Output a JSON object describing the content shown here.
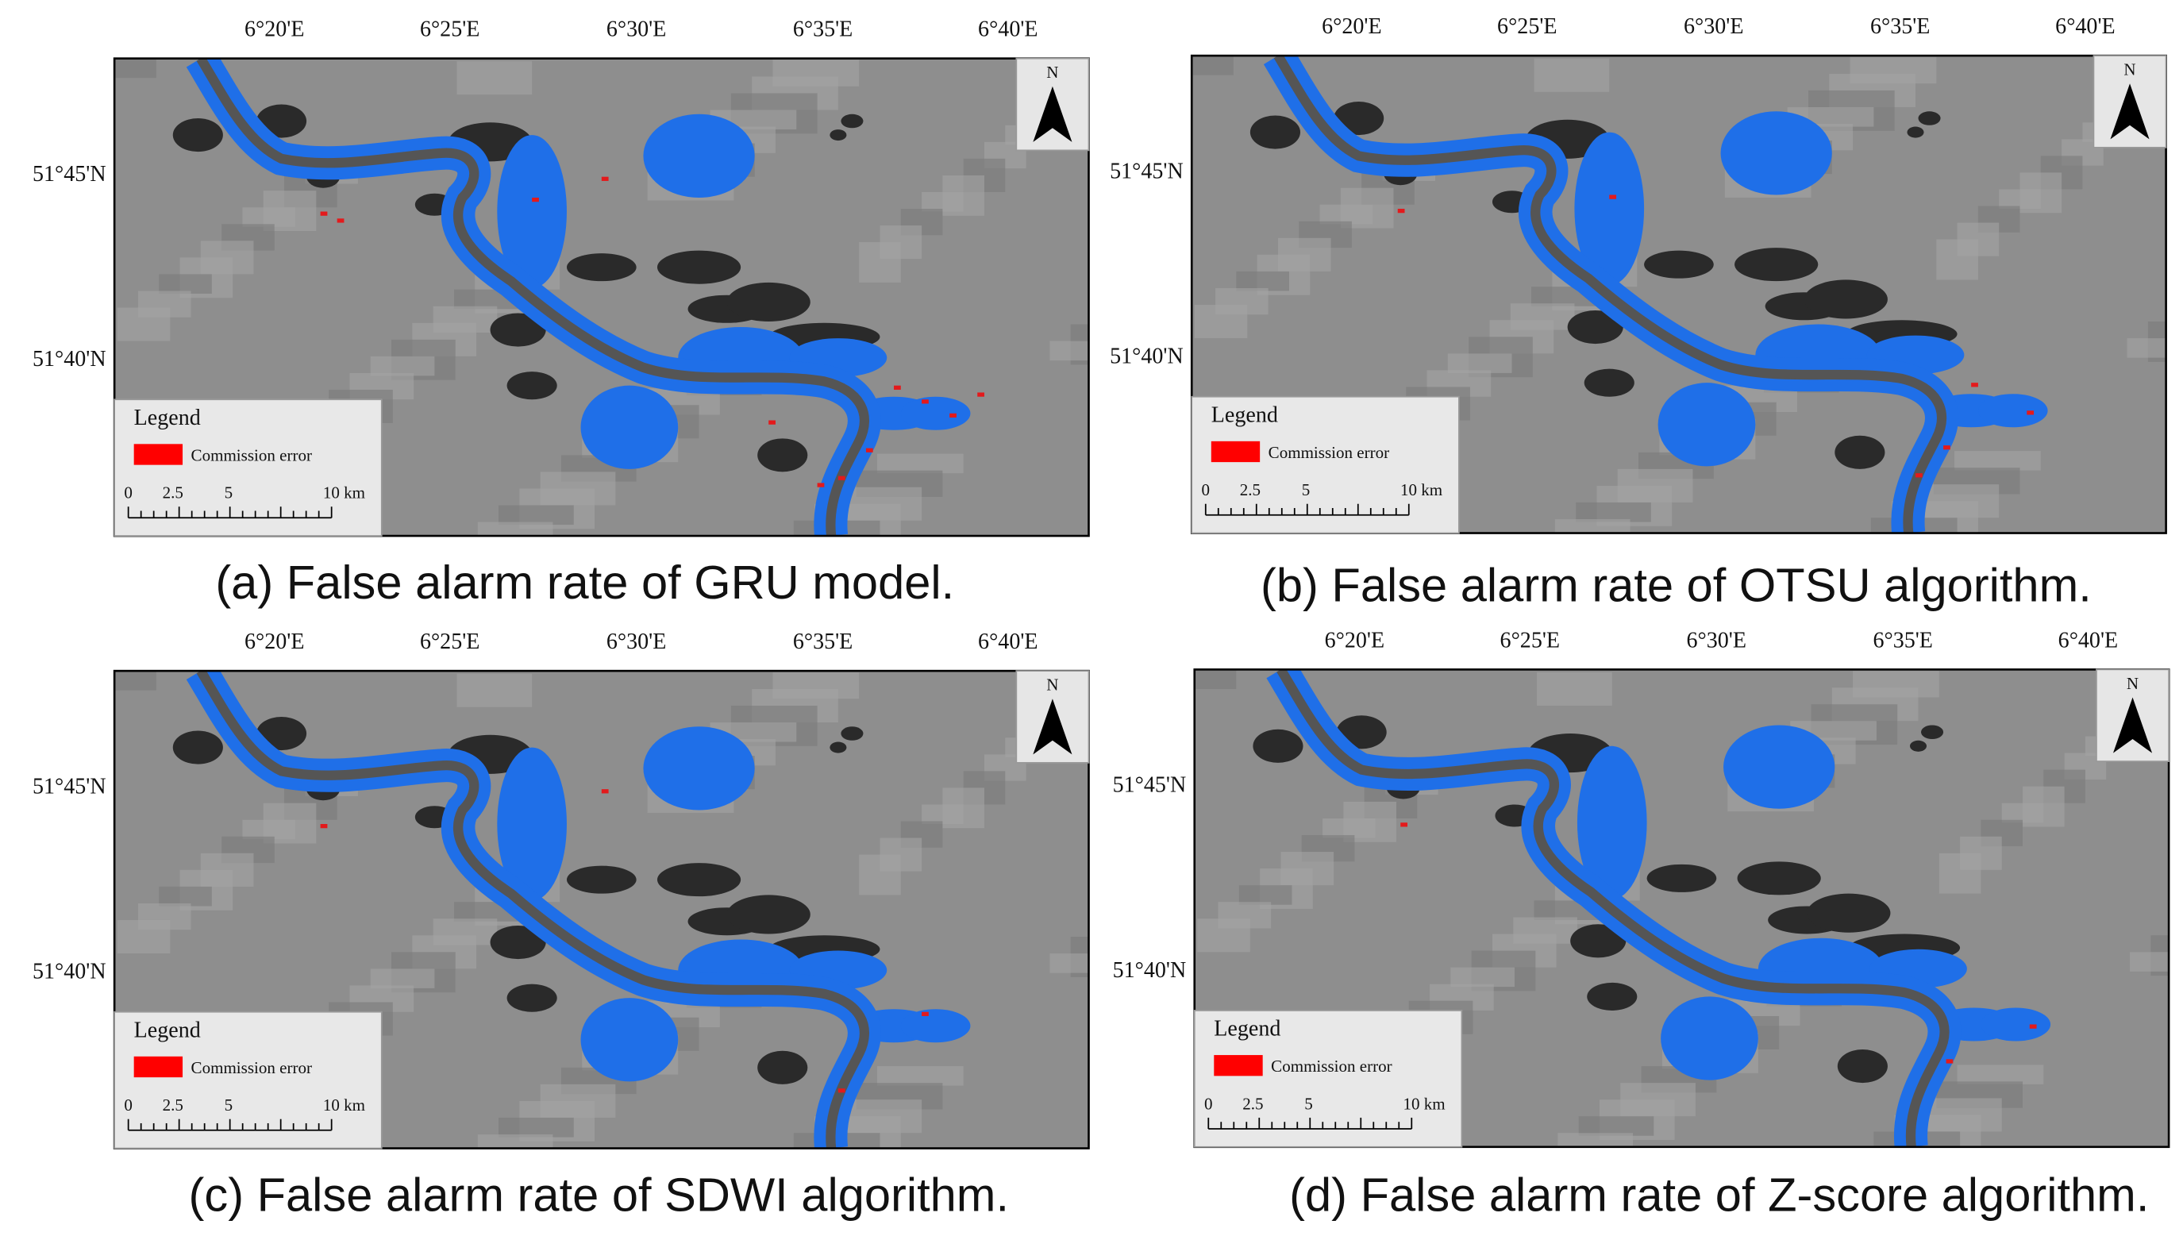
{
  "panels": [
    {
      "caption": "(a) False alarm rate of GRU model.",
      "lon_labels": [
        "6°20'E",
        "6°25'E",
        "6°30'E",
        "6°35'E",
        "6°40'E"
      ],
      "lat_labels": [
        "51°45'N",
        "51°40'N"
      ],
      "north": "N",
      "legend": {
        "title": "Legend",
        "item": "Commission error",
        "scale": [
          "0",
          "2.5",
          "5",
          "10 km"
        ]
      }
    },
    {
      "caption": "(b) False alarm rate of OTSU algorithm.",
      "lon_labels": [
        "6°20'E",
        "6°25'E",
        "6°30'E",
        "6°35'E",
        "6°40'E"
      ],
      "lat_labels": [
        "51°45'N",
        "51°40'N"
      ],
      "north": "N",
      "legend": {
        "title": "Legend",
        "item": "Commission error",
        "scale": [
          "0",
          "2.5",
          "5",
          "10 km"
        ]
      }
    },
    {
      "caption": "(c) False alarm rate of SDWI algorithm.",
      "lon_labels": [
        "6°20'E",
        "6°25'E",
        "6°30'E",
        "6°35'E",
        "6°40'E"
      ],
      "lat_labels": [
        "51°45'N",
        "51°40'N"
      ],
      "north": "N",
      "legend": {
        "title": "Legend",
        "item": "Commission error",
        "scale": [
          "0",
          "2.5",
          "5",
          "10 km"
        ]
      }
    },
    {
      "caption": "(d) False alarm rate of Z-score algorithm.",
      "lon_labels": [
        "6°20'E",
        "6°25'E",
        "6°30'E",
        "6°35'E",
        "6°40'E"
      ],
      "lat_labels": [
        "51°45'N",
        "51°40'N"
      ],
      "north": "N",
      "legend": {
        "title": "Legend",
        "item": "Commission error",
        "scale": [
          "0",
          "2.5",
          "5",
          "10 km"
        ]
      }
    }
  ]
}
